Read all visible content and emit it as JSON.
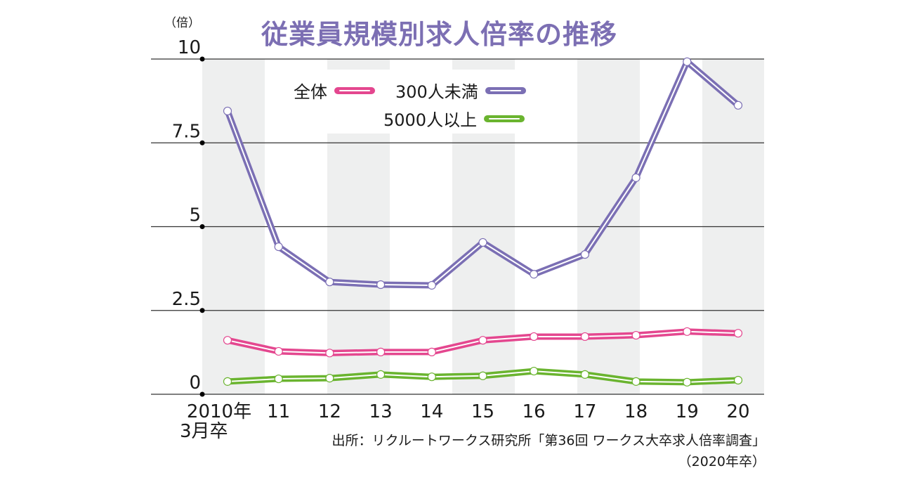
{
  "chart_data": {
    "type": "line",
    "title": "従業員規模別求人倍率の推移",
    "ylabel": "（倍）",
    "xlabel": "",
    "x": [
      "2010年",
      "11",
      "12",
      "13",
      "14",
      "15",
      "16",
      "17",
      "18",
      "19",
      "20"
    ],
    "x_first_sublabel": "3月卒",
    "ylim": [
      0,
      10
    ],
    "yticks": [
      0,
      2.5,
      5,
      7.5,
      10
    ],
    "ytick_labels": [
      "0",
      "2.5",
      "5",
      "7.5",
      "10"
    ],
    "grid": true,
    "legend_position": "top-center",
    "series": [
      {
        "name": "全体",
        "color": "#e4478f",
        "values": [
          1.61,
          1.28,
          1.23,
          1.26,
          1.26,
          1.61,
          1.72,
          1.72,
          1.76,
          1.87,
          1.82
        ]
      },
      {
        "name": "300人未満",
        "color": "#7b6fb4",
        "values": [
          8.45,
          4.4,
          3.35,
          3.27,
          3.25,
          4.53,
          3.58,
          4.17,
          6.46,
          9.92,
          8.62
        ]
      },
      {
        "name": "5000人以上",
        "color": "#6ab42f",
        "values": [
          0.38,
          0.46,
          0.48,
          0.59,
          0.52,
          0.55,
          0.69,
          0.59,
          0.38,
          0.36,
          0.42
        ]
      }
    ],
    "source_line1": "出所：リクルートワークス研究所「第36回 ワークス大卒求人倍率調査」",
    "source_line2": "（2020年卒）"
  },
  "colors": {
    "title": "#7c6fb3",
    "band": "#eeefef",
    "grid": "#333333"
  }
}
